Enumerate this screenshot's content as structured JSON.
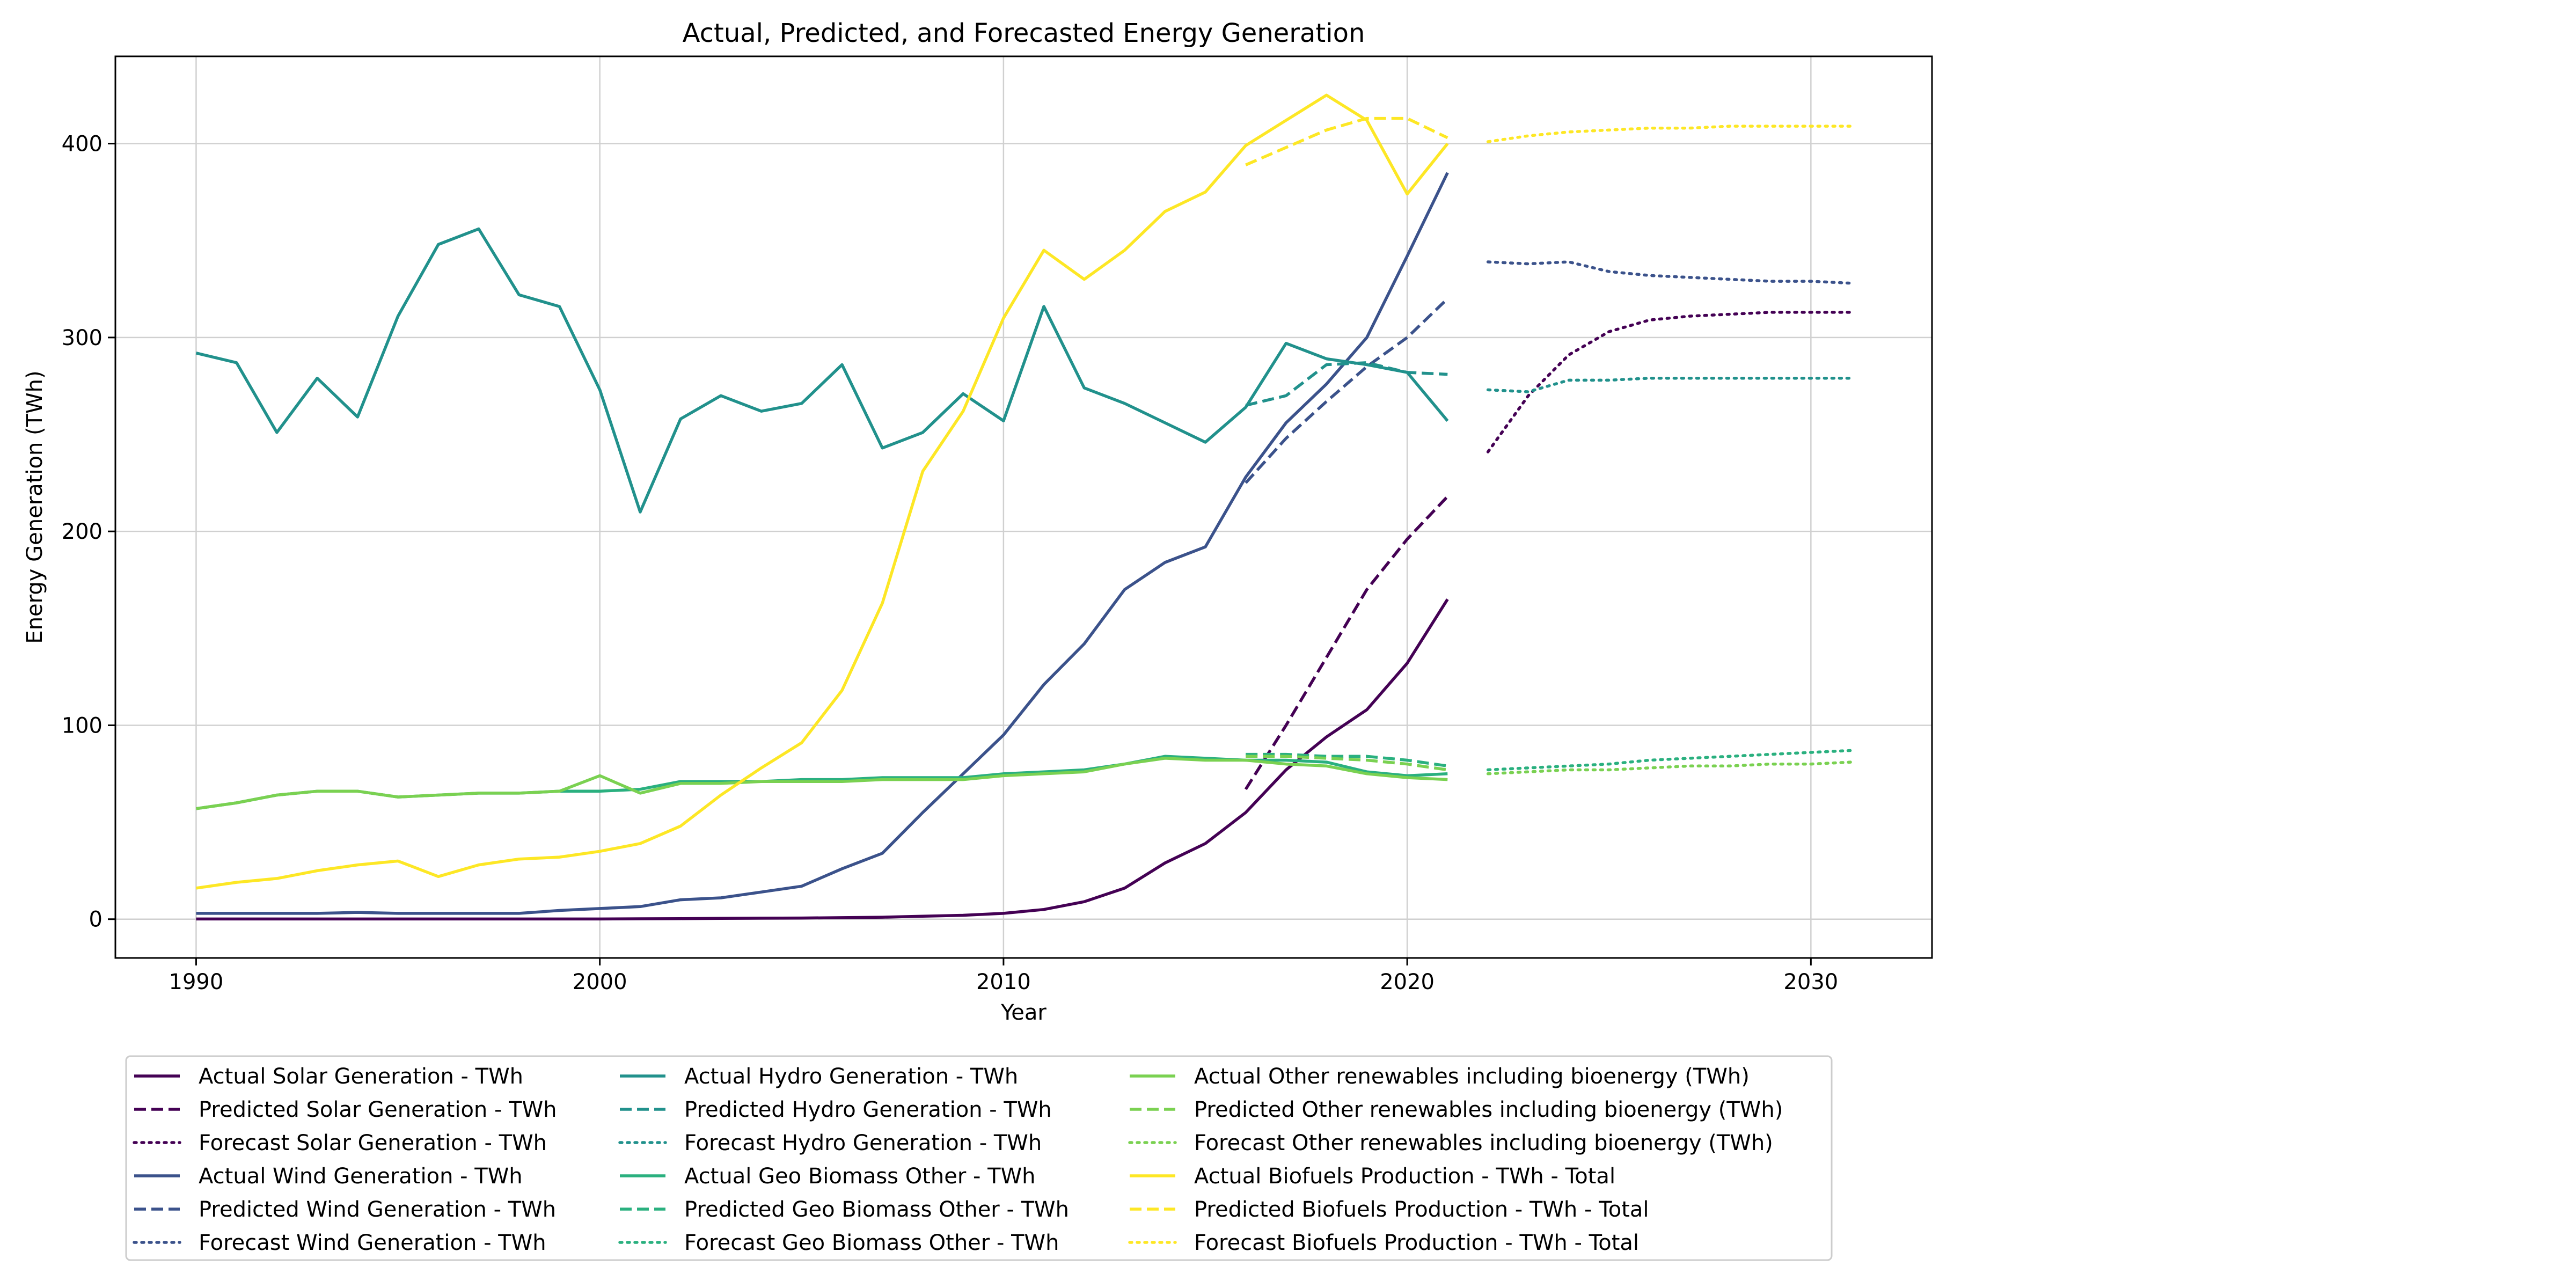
{
  "chart_data": {
    "type": "line",
    "title": "Actual, Predicted, and Forecasted Energy Generation",
    "xlabel": "Year",
    "ylabel": "Energy Generation (TWh)",
    "xlim": [
      1988,
      2033
    ],
    "ylim": [
      -20,
      445
    ],
    "xticks": [
      1990,
      2000,
      2010,
      2020,
      2030
    ],
    "yticks": [
      0,
      100,
      200,
      300,
      400
    ],
    "grid": true,
    "legend_position": "below",
    "series": [
      {
        "name": "Actual Solar Generation - TWh",
        "style": "solid",
        "color": "#440154",
        "x": [
          1990,
          1991,
          1992,
          1993,
          1994,
          1995,
          1996,
          1997,
          1998,
          1999,
          2000,
          2001,
          2002,
          2003,
          2004,
          2005,
          2006,
          2007,
          2008,
          2009,
          2010,
          2011,
          2012,
          2013,
          2014,
          2015,
          2016,
          2017,
          2018,
          2019,
          2020,
          2021
        ],
        "y": [
          0.1,
          0.1,
          0.1,
          0.1,
          0.1,
          0.1,
          0.1,
          0.1,
          0.1,
          0.1,
          0.1,
          0.2,
          0.3,
          0.4,
          0.5,
          0.6,
          0.8,
          1,
          1.5,
          2,
          3,
          5,
          9,
          16,
          29,
          39,
          55,
          77,
          94,
          108,
          132,
          165
        ]
      },
      {
        "name": "Predicted Solar Generation - TWh",
        "style": "dashed",
        "color": "#440154",
        "x": [
          2016,
          2017,
          2018,
          2019,
          2020,
          2021
        ],
        "y": [
          67,
          100,
          135,
          170,
          196,
          218
        ]
      },
      {
        "name": "Forecast Solar Generation - TWh",
        "style": "dotted",
        "color": "#440154",
        "x": [
          2022,
          2023,
          2024,
          2025,
          2026,
          2027,
          2028,
          2029,
          2030,
          2031
        ],
        "y": [
          241,
          270,
          291,
          303,
          309,
          311,
          312,
          313,
          313,
          313
        ]
      },
      {
        "name": "Actual Wind Generation - TWh",
        "style": "solid",
        "color": "#3b528b",
        "x": [
          1990,
          1991,
          1992,
          1993,
          1994,
          1995,
          1996,
          1997,
          1998,
          1999,
          2000,
          2001,
          2002,
          2003,
          2004,
          2005,
          2006,
          2007,
          2008,
          2009,
          2010,
          2011,
          2012,
          2013,
          2014,
          2015,
          2016,
          2017,
          2018,
          2019,
          2020,
          2021
        ],
        "y": [
          3,
          3,
          3,
          3,
          3.5,
          3,
          3,
          3,
          3,
          4.5,
          5.5,
          6.5,
          10,
          11,
          14,
          17,
          26,
          34,
          55,
          75,
          95,
          121,
          142,
          170,
          184,
          192,
          228,
          256,
          276,
          300,
          342,
          385
        ]
      },
      {
        "name": "Predicted Wind Generation - TWh",
        "style": "dashed",
        "color": "#3b528b",
        "x": [
          2016,
          2017,
          2018,
          2019,
          2020,
          2021
        ],
        "y": [
          225,
          248,
          267,
          285,
          300,
          320
        ]
      },
      {
        "name": "Forecast Wind Generation - TWh",
        "style": "dotted",
        "color": "#3b528b",
        "x": [
          2022,
          2023,
          2024,
          2025,
          2026,
          2027,
          2028,
          2029,
          2030,
          2031
        ],
        "y": [
          339,
          338,
          339,
          334,
          332,
          331,
          330,
          329,
          329,
          328
        ]
      },
      {
        "name": "Actual Hydro Generation - TWh",
        "style": "solid",
        "color": "#21918c",
        "x": [
          1990,
          1991,
          1992,
          1993,
          1994,
          1995,
          1996,
          1997,
          1998,
          1999,
          2000,
          2001,
          2002,
          2003,
          2004,
          2005,
          2006,
          2007,
          2008,
          2009,
          2010,
          2011,
          2012,
          2013,
          2014,
          2015,
          2016,
          2017,
          2018,
          2019,
          2020,
          2021
        ],
        "y": [
          292,
          287,
          251,
          279,
          259,
          311,
          348,
          356,
          322,
          316,
          273,
          210,
          258,
          270,
          262,
          266,
          286,
          243,
          251,
          271,
          257,
          316,
          274,
          266,
          256,
          246,
          264,
          297,
          289,
          286,
          282,
          257
        ]
      },
      {
        "name": "Predicted Hydro Generation - TWh",
        "style": "dashed",
        "color": "#21918c",
        "x": [
          2016,
          2017,
          2018,
          2019,
          2020,
          2021
        ],
        "y": [
          265,
          270,
          286,
          287,
          282,
          281
        ]
      },
      {
        "name": "Forecast Hydro Generation - TWh",
        "style": "dotted",
        "color": "#21918c",
        "x": [
          2022,
          2023,
          2024,
          2025,
          2026,
          2027,
          2028,
          2029,
          2030,
          2031
        ],
        "y": [
          273,
          272,
          278,
          278,
          279,
          279,
          279,
          279,
          279,
          279
        ]
      },
      {
        "name": "Actual Geo Biomass Other - TWh",
        "style": "solid",
        "color": "#2ab07f",
        "x": [
          1990,
          1991,
          1992,
          1993,
          1994,
          1995,
          1996,
          1997,
          1998,
          1999,
          2000,
          2001,
          2002,
          2003,
          2004,
          2005,
          2006,
          2007,
          2008,
          2009,
          2010,
          2011,
          2012,
          2013,
          2014,
          2015,
          2016,
          2017,
          2018,
          2019,
          2020,
          2021
        ],
        "y": [
          57,
          60,
          64,
          66,
          66,
          63,
          64,
          65,
          65,
          66,
          66,
          67,
          71,
          71,
          71,
          72,
          72,
          73,
          73,
          73,
          75,
          76,
          77,
          80,
          84,
          83,
          82,
          82,
          81,
          76,
          74,
          75
        ]
      },
      {
        "name": "Predicted Geo Biomass Other - TWh",
        "style": "dashed",
        "color": "#2ab07f",
        "x": [
          2016,
          2017,
          2018,
          2019,
          2020,
          2021
        ],
        "y": [
          85,
          85,
          84,
          84,
          82,
          79
        ]
      },
      {
        "name": "Forecast Geo Biomass Other - TWh",
        "style": "dotted",
        "color": "#2ab07f",
        "x": [
          2022,
          2023,
          2024,
          2025,
          2026,
          2027,
          2028,
          2029,
          2030,
          2031
        ],
        "y": [
          77,
          78,
          79,
          80,
          82,
          83,
          84,
          85,
          86,
          87
        ]
      },
      {
        "name": "Actual Other renewables including bioenergy (TWh)",
        "style": "solid",
        "color": "#7ad151",
        "x": [
          1990,
          1991,
          1992,
          1993,
          1994,
          1995,
          1996,
          1997,
          1998,
          1999,
          2000,
          2001,
          2002,
          2003,
          2004,
          2005,
          2006,
          2007,
          2008,
          2009,
          2010,
          2011,
          2012,
          2013,
          2014,
          2015,
          2016,
          2017,
          2018,
          2019,
          2020,
          2021
        ],
        "y": [
          57,
          60,
          64,
          66,
          66,
          63,
          64,
          65,
          65,
          66,
          74,
          65,
          70,
          70,
          71,
          71,
          71,
          72,
          72,
          72,
          74,
          75,
          76,
          80,
          83,
          82,
          82,
          80,
          79,
          75,
          73,
          72
        ]
      },
      {
        "name": "Predicted Other renewables including bioenergy (TWh)",
        "style": "dashed",
        "color": "#7ad151",
        "x": [
          2016,
          2017,
          2018,
          2019,
          2020,
          2021
        ],
        "y": [
          84,
          84,
          83,
          82,
          80,
          77
        ]
      },
      {
        "name": "Forecast Other renewables including bioenergy (TWh)",
        "style": "dotted",
        "color": "#7ad151",
        "x": [
          2022,
          2023,
          2024,
          2025,
          2026,
          2027,
          2028,
          2029,
          2030,
          2031
        ],
        "y": [
          75,
          76,
          77,
          77,
          78,
          79,
          79,
          80,
          80,
          81
        ]
      },
      {
        "name": "Actual Biofuels Production - TWh - Total",
        "style": "solid",
        "color": "#fde725",
        "x": [
          1990,
          1991,
          1992,
          1993,
          1994,
          1995,
          1996,
          1997,
          1998,
          1999,
          2000,
          2001,
          2002,
          2003,
          2004,
          2005,
          2006,
          2007,
          2008,
          2009,
          2010,
          2011,
          2012,
          2013,
          2014,
          2015,
          2016,
          2017,
          2018,
          2019,
          2020,
          2021
        ],
        "y": [
          16,
          19,
          21,
          25,
          28,
          30,
          22,
          28,
          31,
          32,
          35,
          39,
          48,
          64,
          78,
          91,
          118,
          163,
          231,
          262,
          310,
          345,
          330,
          345,
          365,
          375,
          399,
          412,
          425,
          412,
          374,
          400
        ]
      },
      {
        "name": "Predicted Biofuels Production - TWh - Total",
        "style": "dashed",
        "color": "#fde725",
        "x": [
          2016,
          2017,
          2018,
          2019,
          2020,
          2021
        ],
        "y": [
          389,
          398,
          407,
          413,
          413,
          403
        ]
      },
      {
        "name": "Forecast Biofuels Production - TWh - Total",
        "style": "dotted",
        "color": "#fde725",
        "x": [
          2022,
          2023,
          2024,
          2025,
          2026,
          2027,
          2028,
          2029,
          2030,
          2031
        ],
        "y": [
          401,
          404,
          406,
          407,
          408,
          408,
          409,
          409,
          409,
          409
        ]
      }
    ]
  }
}
